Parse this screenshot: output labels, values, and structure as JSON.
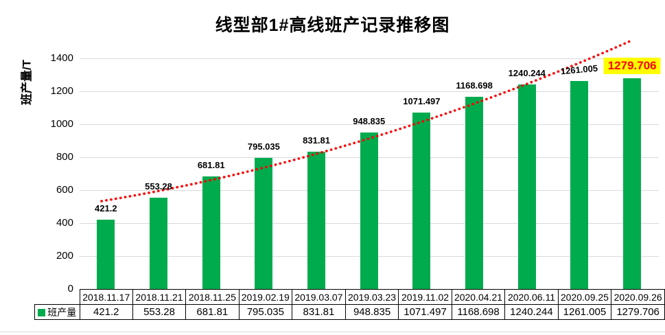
{
  "title": "线型部1#高线班产记录推移图",
  "y_axis": {
    "label": "班产量/T",
    "ticks": [
      0,
      200,
      400,
      600,
      800,
      1000,
      1200,
      1400
    ]
  },
  "legend": {
    "label": "班产量"
  },
  "colors": {
    "bar": "#00AB4E",
    "trend": "#FF0000",
    "highlight_bg": "#FFFF00",
    "highlight_text": "#FF0000",
    "grid": "#D9D9D9",
    "axis_text": "#000000",
    "table_border": "#000000"
  },
  "chart_data": {
    "type": "bar",
    "title": "线型部1#高线班产记录推移图",
    "ylabel": "班产量/T",
    "xlabel": "",
    "ylim": [
      0,
      1400
    ],
    "grid": true,
    "legend_position": "bottom-table",
    "categories": [
      "2018.11.17",
      "2018.11.21",
      "2018.11.25",
      "2019.02.19",
      "2019.03.07",
      "2019.03.23",
      "2019.11.02",
      "2020.04.21",
      "2020.06.11",
      "2020.09.25",
      "2020.09.26"
    ],
    "series": [
      {
        "name": "班产量",
        "values": [
          421.2,
          553.28,
          681.81,
          795.035,
          831.81,
          948.835,
          1071.497,
          1168.698,
          1240.244,
          1261.005,
          1279.706
        ]
      }
    ],
    "data_labels": [
      "421.2",
      "553.28",
      "681.81",
      "795.035",
      "831.81",
      "948.835",
      "1071.497",
      "1168.698",
      "1240.244",
      "1261.005",
      "1279.706"
    ],
    "highlight_last_label": true,
    "trendline": {
      "type": "exponential",
      "style": "dotted",
      "color": "#FF0000"
    }
  }
}
